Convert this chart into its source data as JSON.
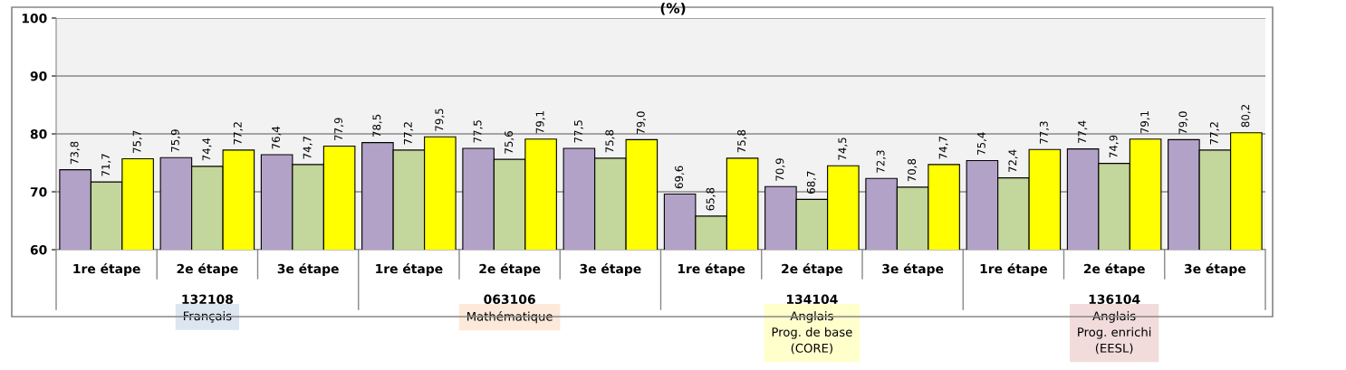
{
  "chart_data": {
    "type": "bar",
    "title": "(%)",
    "categories": [
      "1re étape",
      "2e étape",
      "3e étape",
      "1re étape",
      "2e étape",
      "3e étape",
      "1re étape",
      "2e étape",
      "3e étape",
      "1re étape",
      "2e étape",
      "3e étape"
    ],
    "series": [
      {
        "color": "#b3a2c7",
        "values": [
          73.8,
          75.9,
          76.4,
          78.5,
          77.5,
          77.5,
          69.6,
          70.9,
          72.3,
          75.4,
          77.4,
          79.0
        ],
        "value_labels": [
          "73,8",
          "75,9",
          "76,4",
          "78,5",
          "77,5",
          "77,5",
          "69,6",
          "70,9",
          "72,3",
          "75,4",
          "77,4",
          "79,0"
        ]
      },
      {
        "color": "#c3d69b",
        "values": [
          71.7,
          74.4,
          74.7,
          77.2,
          75.6,
          75.8,
          65.8,
          68.7,
          70.8,
          72.4,
          74.9,
          77.2
        ],
        "value_labels": [
          "71,7",
          "74,4",
          "74,7",
          "77,2",
          "75,6",
          "75,8",
          "65,8",
          "68,7",
          "70,8",
          "72,4",
          "74,9",
          "77,2"
        ]
      },
      {
        "color": "#ffff00",
        "values": [
          75.7,
          77.2,
          77.9,
          79.5,
          79.1,
          79.0,
          75.8,
          74.5,
          74.7,
          77.3,
          79.1,
          80.2
        ],
        "value_labels": [
          "75,7",
          "77,2",
          "77,9",
          "79,5",
          "79,1",
          "79,0",
          "75,8",
          "74,5",
          "74,7",
          "77,3",
          "79,1",
          "80,2"
        ]
      }
    ],
    "ylim": [
      60,
      100
    ],
    "yticks": [
      60,
      70,
      80,
      90,
      100
    ],
    "grid": "y",
    "annotations": [
      "132108",
      "063106",
      "134104",
      "136104",
      "Français",
      "Mathématique",
      "Anglais\nProg. de base\n(CORE)",
      "Anglais\nProg. enrichi\n(EESL)"
    ]
  }
}
